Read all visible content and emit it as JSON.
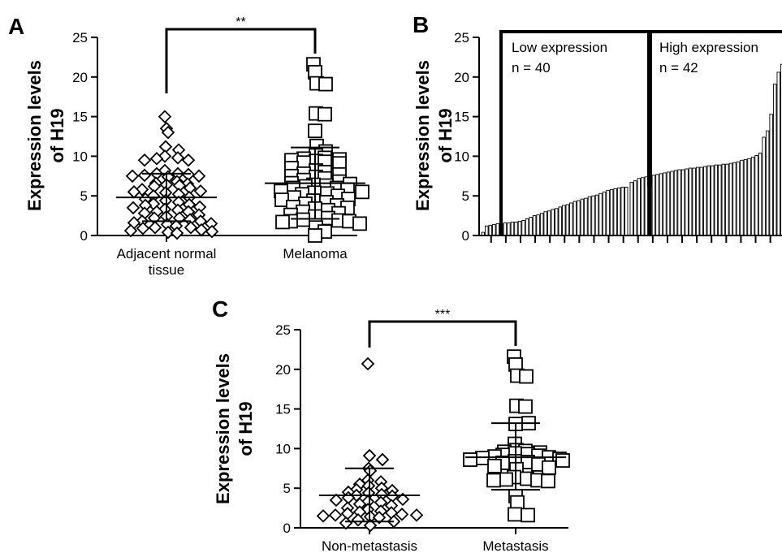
{
  "panel_labels": [
    "A",
    "B",
    "C"
  ],
  "chart_data": [
    {
      "panel": "A",
      "type": "scatter",
      "ylabel_lines": [
        "Expression levels",
        "of H19"
      ],
      "ylim": [
        0,
        25
      ],
      "yticks": [
        "0",
        "5",
        "10",
        "15",
        "20",
        "25"
      ],
      "categories": [
        [
          "Adjacent normal",
          "tissue"
        ],
        [
          "Melanoma"
        ]
      ],
      "significance": "**",
      "series": [
        {
          "marker": "diamond",
          "mean": 4.8,
          "sd_upper": 7.8,
          "sd_lower": 1.8,
          "values": [
            15.0,
            13.5,
            13.0,
            11.2,
            10.8,
            10.0,
            9.8,
            9.7,
            9.5,
            9.5,
            8.2,
            7.8,
            7.8,
            7.7,
            7.6,
            7.5,
            7.5,
            7.4,
            6.8,
            6.6,
            6.5,
            6.4,
            6.3,
            6.2,
            6.0,
            5.8,
            5.6,
            5.5,
            5.4,
            5.2,
            5.0,
            4.8,
            4.6,
            4.4,
            4.2,
            4.0,
            3.9,
            3.8,
            3.6,
            3.5,
            3.3,
            3.2,
            3.0,
            3.0,
            2.8,
            2.6,
            2.4,
            2.2,
            2.2,
            2.0,
            1.8,
            1.8,
            1.6,
            1.5,
            1.4,
            1.2,
            1.0,
            1.0,
            0.9,
            0.7,
            0.6,
            0.5,
            0.4,
            0.3
          ]
        },
        {
          "marker": "square",
          "mean": 6.6,
          "sd_upper": 11.1,
          "sd_lower": 2.1,
          "values": [
            21.6,
            20.6,
            19.2,
            19.1,
            15.4,
            15.3,
            13.2,
            11.3,
            10.6,
            10.1,
            9.8,
            9.7,
            9.6,
            9.5,
            9.4,
            9.3,
            9.2,
            9.1,
            8.5,
            8.2,
            8.0,
            7.8,
            7.7,
            7.5,
            7.4,
            7.2,
            7.0,
            6.8,
            6.6,
            6.5,
            6.4,
            6.3,
            6.2,
            6.0,
            6.0,
            5.8,
            5.6,
            5.5,
            5.4,
            5.3,
            5.2,
            5.0,
            4.8,
            4.6,
            4.5,
            4.4,
            4.2,
            4.0,
            3.8,
            3.6,
            3.5,
            3.4,
            3.2,
            3.0,
            2.8,
            2.6,
            2.4,
            2.2,
            2.0,
            1.9,
            1.8,
            1.8,
            1.7,
            1.5,
            1.0,
            0.5,
            0.0
          ]
        }
      ]
    },
    {
      "panel": "B",
      "type": "bar",
      "ylabel_lines": [
        "Expression levels",
        "of H19"
      ],
      "ylim": [
        0,
        25
      ],
      "yticks": [
        "0",
        "5",
        "10",
        "15",
        "20",
        "25"
      ],
      "groups": [
        {
          "label": "Low expression",
          "n_text": "n = 40"
        },
        {
          "label": "High expression",
          "n_text": "n = 42"
        }
      ],
      "values": [
        0.4,
        1.2,
        1.3,
        1.4,
        1.5,
        1.5,
        1.6,
        1.6,
        1.7,
        1.7,
        1.8,
        1.9,
        2.1,
        2.3,
        2.5,
        2.6,
        2.8,
        3.0,
        3.1,
        3.3,
        3.4,
        3.6,
        3.8,
        3.9,
        4.1,
        4.3,
        4.4,
        4.6,
        4.7,
        4.9,
        5.0,
        5.1,
        5.3,
        5.5,
        5.7,
        5.8,
        5.9,
        6.0,
        6.1,
        6.1,
        6.7,
        6.9,
        7.2,
        7.3,
        7.4,
        7.5,
        7.6,
        7.7,
        7.8,
        7.9,
        8.0,
        8.1,
        8.2,
        8.3,
        8.3,
        8.4,
        8.5,
        8.5,
        8.6,
        8.6,
        8.7,
        8.8,
        8.8,
        8.9,
        8.9,
        9.0,
        9.0,
        9.1,
        9.2,
        9.3,
        9.5,
        9.6,
        9.7,
        9.9,
        10.1,
        10.4,
        12.4,
        13.2,
        15.3,
        19.1,
        20.6,
        21.6
      ]
    },
    {
      "panel": "C",
      "type": "scatter",
      "ylabel_lines": [
        "Expression levels",
        "of H19"
      ],
      "ylim": [
        0,
        25
      ],
      "yticks": [
        "0",
        "5",
        "10",
        "15",
        "20",
        "25"
      ],
      "categories": [
        [
          "Non-metastasis"
        ],
        [
          "Metastasis"
        ]
      ],
      "significance": "***",
      "series": [
        {
          "marker": "diamond",
          "mean": 4.1,
          "sd_upper": 7.5,
          "sd_lower": 0.8,
          "values": [
            20.7,
            9.1,
            8.6,
            7.5,
            7.2,
            6.0,
            5.8,
            5.5,
            5.3,
            5.0,
            4.8,
            4.7,
            4.5,
            4.4,
            4.2,
            4.1,
            4.0,
            3.8,
            3.6,
            3.5,
            3.3,
            3.2,
            3.0,
            2.8,
            2.5,
            2.3,
            2.1,
            2.0,
            1.9,
            1.8,
            1.7,
            1.6,
            1.6,
            1.5,
            1.4,
            1.3,
            1.0,
            0.8,
            0.6,
            0.3
          ]
        },
        {
          "marker": "square",
          "mean": 8.9,
          "sd_upper": 13.2,
          "sd_lower": 4.8,
          "values": [
            21.6,
            20.6,
            19.2,
            19.1,
            15.4,
            15.3,
            13.1,
            13.2,
            10.6,
            9.8,
            9.7,
            9.6,
            9.5,
            9.4,
            9.3,
            9.2,
            9.1,
            9.0,
            8.9,
            8.8,
            8.7,
            8.6,
            8.5,
            8.4,
            8.3,
            8.2,
            8.0,
            7.8,
            7.6,
            7.4,
            6.4,
            6.2,
            6.1,
            6.0,
            6.0,
            5.9,
            4.0,
            3.2,
            1.7,
            1.6
          ]
        }
      ]
    }
  ]
}
